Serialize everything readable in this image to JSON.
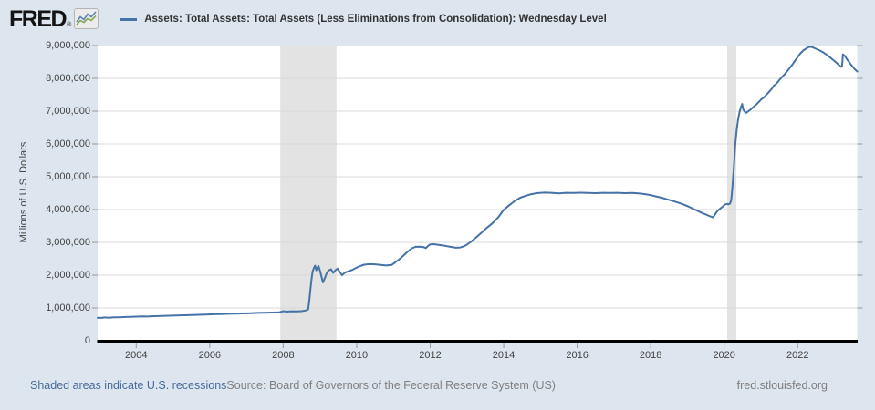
{
  "header": {
    "logo_text": "FRED",
    "registered_mark": "®",
    "legend_label": "Assets: Total Assets: Total Assets (Less Eliminations from Consolidation): Wednesday Level"
  },
  "footer": {
    "recessions_link": "Shaded areas indicate U.S. recessions",
    "source": "Source: Board of Governors of the Federal Reserve System (US)",
    "site": "fred.stlouisfed.org"
  },
  "colors": {
    "page_bg": "#dde5ee",
    "plot_bg": "#ffffff",
    "grid": "#d9d9d9",
    "recession_band": "#e3e3e3",
    "line": "#4572a7",
    "axis": "#000000",
    "tick": "#999999",
    "tick_label": "#444444",
    "title_text": "#333333",
    "footer_link": "#476b9b",
    "footer_text": "#808080"
  },
  "chart_data": {
    "type": "line",
    "title": "Assets: Total Assets: Total Assets (Less Eliminations from Consolidation): Wednesday Level",
    "ylabel": "Millions of U.S. Dollars",
    "xlabel": "",
    "grid": true,
    "legend_position": "top",
    "ylim": [
      0,
      9000000
    ],
    "x_range": [
      2002.95,
      2023.62
    ],
    "y_ticks": [
      0,
      1000000,
      2000000,
      3000000,
      4000000,
      5000000,
      6000000,
      7000000,
      8000000,
      9000000
    ],
    "x_ticks": [
      2004,
      2006,
      2008,
      2010,
      2012,
      2014,
      2016,
      2018,
      2020,
      2022
    ],
    "recession_bands": [
      [
        2007.92,
        2009.45
      ],
      [
        2020.083,
        2020.33
      ]
    ],
    "series": [
      {
        "name": "Assets: Total Assets: Total Assets (Less Eliminations from Consolidation): Wednesday Level",
        "color": "#4572a7",
        "points": [
          [
            2002.95,
            700000
          ],
          [
            2003.05,
            696000
          ],
          [
            2003.15,
            710000
          ],
          [
            2003.25,
            704000
          ],
          [
            2003.4,
            718000
          ],
          [
            2003.55,
            714000
          ],
          [
            2003.7,
            724000
          ],
          [
            2003.85,
            730000
          ],
          [
            2004.0,
            736000
          ],
          [
            2004.15,
            742000
          ],
          [
            2004.3,
            739000
          ],
          [
            2004.5,
            750000
          ],
          [
            2004.7,
            757000
          ],
          [
            2004.9,
            764000
          ],
          [
            2005.1,
            771000
          ],
          [
            2005.3,
            777000
          ],
          [
            2005.5,
            784000
          ],
          [
            2005.7,
            791000
          ],
          [
            2005.9,
            799000
          ],
          [
            2006.1,
            807000
          ],
          [
            2006.3,
            814000
          ],
          [
            2006.5,
            821000
          ],
          [
            2006.7,
            827000
          ],
          [
            2006.9,
            834000
          ],
          [
            2007.1,
            841000
          ],
          [
            2007.3,
            849000
          ],
          [
            2007.5,
            855000
          ],
          [
            2007.7,
            861000
          ],
          [
            2007.9,
            869000
          ],
          [
            2008.0,
            902000
          ],
          [
            2008.1,
            889000
          ],
          [
            2008.22,
            899000
          ],
          [
            2008.35,
            894000
          ],
          [
            2008.5,
            904000
          ],
          [
            2008.62,
            924000
          ],
          [
            2008.68,
            958000
          ],
          [
            2008.71,
            1230000
          ],
          [
            2008.74,
            1560000
          ],
          [
            2008.77,
            1870000
          ],
          [
            2008.8,
            2110000
          ],
          [
            2008.84,
            2230000
          ],
          [
            2008.87,
            2290000
          ],
          [
            2008.9,
            2150000
          ],
          [
            2008.93,
            2220000
          ],
          [
            2008.96,
            2280000
          ],
          [
            2009.0,
            2140000
          ],
          [
            2009.04,
            1960000
          ],
          [
            2009.08,
            1780000
          ],
          [
            2009.13,
            1900000
          ],
          [
            2009.18,
            2050000
          ],
          [
            2009.23,
            2140000
          ],
          [
            2009.3,
            2180000
          ],
          [
            2009.36,
            2070000
          ],
          [
            2009.42,
            2150000
          ],
          [
            2009.48,
            2200000
          ],
          [
            2009.54,
            2100000
          ],
          [
            2009.6,
            2000000
          ],
          [
            2009.68,
            2080000
          ],
          [
            2009.78,
            2120000
          ],
          [
            2009.88,
            2160000
          ],
          [
            2009.98,
            2220000
          ],
          [
            2010.1,
            2280000
          ],
          [
            2010.2,
            2320000
          ],
          [
            2010.35,
            2335000
          ],
          [
            2010.5,
            2330000
          ],
          [
            2010.65,
            2310000
          ],
          [
            2010.8,
            2295000
          ],
          [
            2010.95,
            2310000
          ],
          [
            2011.05,
            2390000
          ],
          [
            2011.2,
            2520000
          ],
          [
            2011.35,
            2680000
          ],
          [
            2011.5,
            2820000
          ],
          [
            2011.6,
            2865000
          ],
          [
            2011.72,
            2870000
          ],
          [
            2011.82,
            2855000
          ],
          [
            2011.88,
            2825000
          ],
          [
            2011.94,
            2890000
          ],
          [
            2012.0,
            2940000
          ],
          [
            2012.1,
            2945000
          ],
          [
            2012.25,
            2920000
          ],
          [
            2012.4,
            2895000
          ],
          [
            2012.55,
            2865000
          ],
          [
            2012.7,
            2835000
          ],
          [
            2012.82,
            2845000
          ],
          [
            2012.92,
            2880000
          ],
          [
            2013.0,
            2930000
          ],
          [
            2013.1,
            3010000
          ],
          [
            2013.25,
            3150000
          ],
          [
            2013.4,
            3300000
          ],
          [
            2013.55,
            3450000
          ],
          [
            2013.7,
            3590000
          ],
          [
            2013.85,
            3760000
          ],
          [
            2014.0,
            3990000
          ],
          [
            2014.15,
            4130000
          ],
          [
            2014.3,
            4260000
          ],
          [
            2014.45,
            4360000
          ],
          [
            2014.6,
            4420000
          ],
          [
            2014.75,
            4470000
          ],
          [
            2014.9,
            4500000
          ],
          [
            2015.1,
            4516000
          ],
          [
            2015.3,
            4510000
          ],
          [
            2015.5,
            4495000
          ],
          [
            2015.7,
            4510000
          ],
          [
            2015.9,
            4505000
          ],
          [
            2016.1,
            4515000
          ],
          [
            2016.3,
            4505000
          ],
          [
            2016.5,
            4500000
          ],
          [
            2016.7,
            4510000
          ],
          [
            2016.9,
            4505000
          ],
          [
            2017.1,
            4510000
          ],
          [
            2017.3,
            4500000
          ],
          [
            2017.5,
            4505000
          ],
          [
            2017.7,
            4490000
          ],
          [
            2017.85,
            4470000
          ],
          [
            2018.0,
            4440000
          ],
          [
            2018.15,
            4400000
          ],
          [
            2018.3,
            4360000
          ],
          [
            2018.45,
            4310000
          ],
          [
            2018.6,
            4260000
          ],
          [
            2018.75,
            4210000
          ],
          [
            2018.9,
            4150000
          ],
          [
            2019.05,
            4080000
          ],
          [
            2019.2,
            4000000
          ],
          [
            2019.35,
            3920000
          ],
          [
            2019.5,
            3850000
          ],
          [
            2019.6,
            3800000
          ],
          [
            2019.7,
            3760000
          ],
          [
            2019.75,
            3850000
          ],
          [
            2019.78,
            3900000
          ],
          [
            2019.82,
            3960000
          ],
          [
            2019.88,
            4020000
          ],
          [
            2019.95,
            4080000
          ],
          [
            2020.02,
            4150000
          ],
          [
            2020.07,
            4170000
          ],
          [
            2020.12,
            4160000
          ],
          [
            2020.16,
            4180000
          ],
          [
            2020.19,
            4290000
          ],
          [
            2020.22,
            4650000
          ],
          [
            2020.26,
            5250000
          ],
          [
            2020.3,
            5960000
          ],
          [
            2020.34,
            6430000
          ],
          [
            2020.38,
            6760000
          ],
          [
            2020.42,
            6980000
          ],
          [
            2020.46,
            7130000
          ],
          [
            2020.49,
            7220000
          ],
          [
            2020.52,
            7050000
          ],
          [
            2020.56,
            6980000
          ],
          [
            2020.6,
            6950000
          ],
          [
            2020.66,
            7000000
          ],
          [
            2020.72,
            7050000
          ],
          [
            2020.8,
            7130000
          ],
          [
            2020.9,
            7230000
          ],
          [
            2021.0,
            7350000
          ],
          [
            2021.1,
            7440000
          ],
          [
            2021.15,
            7500000
          ],
          [
            2021.2,
            7560000
          ],
          [
            2021.3,
            7690000
          ],
          [
            2021.36,
            7790000
          ],
          [
            2021.4,
            7810000
          ],
          [
            2021.45,
            7880000
          ],
          [
            2021.55,
            8010000
          ],
          [
            2021.65,
            8130000
          ],
          [
            2021.75,
            8270000
          ],
          [
            2021.85,
            8410000
          ],
          [
            2021.95,
            8570000
          ],
          [
            2022.05,
            8730000
          ],
          [
            2022.15,
            8850000
          ],
          [
            2022.25,
            8920000
          ],
          [
            2022.32,
            8960000
          ],
          [
            2022.4,
            8950000
          ],
          [
            2022.5,
            8900000
          ],
          [
            2022.6,
            8850000
          ],
          [
            2022.7,
            8790000
          ],
          [
            2022.8,
            8710000
          ],
          [
            2022.9,
            8620000
          ],
          [
            2023.0,
            8530000
          ],
          [
            2023.1,
            8430000
          ],
          [
            2023.18,
            8350000
          ],
          [
            2023.21,
            8390000
          ],
          [
            2023.23,
            8730000
          ],
          [
            2023.28,
            8690000
          ],
          [
            2023.35,
            8570000
          ],
          [
            2023.45,
            8420000
          ],
          [
            2023.55,
            8280000
          ],
          [
            2023.62,
            8210000
          ]
        ]
      }
    ]
  }
}
